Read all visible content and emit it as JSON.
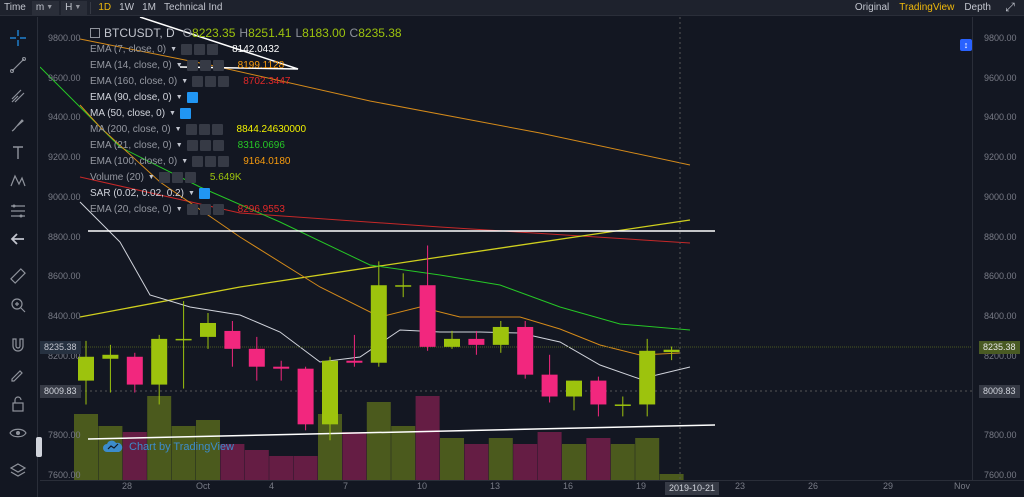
{
  "toolbar": {
    "time_label": "Time",
    "interval_dd": "m",
    "hour_dd": "H",
    "intervals": [
      "1D",
      "1W",
      "1M"
    ],
    "active_interval": "1D",
    "technical_label": "Technical Ind",
    "views": [
      "Original",
      "TradingView",
      "Depth"
    ],
    "active_view": "TradingView"
  },
  "legend": {
    "symbol": "BTCUSDT, D",
    "ohlc": [
      {
        "k": "O",
        "v": "8223.35"
      },
      {
        "k": "H",
        "v": "8251.41"
      },
      {
        "k": "L",
        "v": "8183.00"
      },
      {
        "k": "C",
        "v": "8235.38"
      }
    ],
    "indicators": [
      {
        "name": "EMA (7, close, 0)",
        "value": "8142.0432",
        "color": "#ffffff",
        "eye": false
      },
      {
        "name": "EMA (14, close, 0)",
        "value": "8199.1128",
        "color": "#f89b0e",
        "eye": false
      },
      {
        "name": "EMA (160, close, 0)",
        "value": "8702.3447",
        "color": "#e02828",
        "eye": false
      },
      {
        "name": "EMA (90, close, 0)",
        "value": "",
        "color": "#ffffff",
        "eye": true
      },
      {
        "name": "MA (50, close, 0)",
        "value": "",
        "color": "#ffffff",
        "eye": true
      },
      {
        "name": "MA (200, close, 0)",
        "value": "8844.24630000",
        "color": "#f3f300",
        "eye": false
      },
      {
        "name": "EMA (21, close, 0)",
        "value": "8316.0696",
        "color": "#26c726",
        "eye": false
      },
      {
        "name": "EMA (100, close, 0)",
        "value": "9164.0180",
        "color": "#f89b0e",
        "eye": false
      },
      {
        "name": "Volume (20)",
        "value": "5.649K",
        "color": "#9dc30d",
        "eye": false
      },
      {
        "name": "SAR (0.02, 0.02, 0.2)",
        "value": "",
        "color": "#ffffff",
        "eye": true
      },
      {
        "name": "EMA (20, close, 0)",
        "value": "8296.9553",
        "color": "#e02828",
        "eye": false
      }
    ]
  },
  "y_ticks": [
    "9800.00",
    "9600.00",
    "9400.00",
    "9200.00",
    "9000.00",
    "8800.00",
    "8600.00",
    "8400.00",
    "8200.00",
    "7800.00",
    "7600.00"
  ],
  "x_ticks": [
    "28",
    "Oct",
    "4",
    "7",
    "10",
    "13",
    "16",
    "19",
    "23",
    "26",
    "29",
    "Nov"
  ],
  "cursor_date": "2019-10-21",
  "last_price": "8235.38",
  "cursor_price": "8009.83",
  "watermark": "Chart by TradingView",
  "colors": {
    "up": "#9dc30d",
    "down": "#f2277e",
    "background": "#131722",
    "accent": "#f0b90b"
  },
  "chart_data": {
    "type": "candlestick",
    "ylim": [
      7600,
      9950
    ],
    "candles": [
      {
        "date": "2019-09-26",
        "o": 8080,
        "h": 8280,
        "l": 7960,
        "c": 8200
      },
      {
        "date": "2019-09-27",
        "o": 8190,
        "h": 8260,
        "l": 8020,
        "c": 8210
      },
      {
        "date": "2019-09-28",
        "o": 8200,
        "h": 8220,
        "l": 8020,
        "c": 8060
      },
      {
        "date": "2019-09-29",
        "o": 8060,
        "h": 8310,
        "l": 7960,
        "c": 8290
      },
      {
        "date": "2019-09-30",
        "o": 8290,
        "h": 8480,
        "l": 8040,
        "c": 8290
      },
      {
        "date": "2019-10-01",
        "o": 8300,
        "h": 8420,
        "l": 8240,
        "c": 8370
      },
      {
        "date": "2019-10-02",
        "o": 8330,
        "h": 8380,
        "l": 8150,
        "c": 8240
      },
      {
        "date": "2019-10-03",
        "o": 8240,
        "h": 8300,
        "l": 8080,
        "c": 8150
      },
      {
        "date": "2019-10-04",
        "o": 8150,
        "h": 8180,
        "l": 8080,
        "c": 8140
      },
      {
        "date": "2019-10-05",
        "o": 8140,
        "h": 8150,
        "l": 7830,
        "c": 7860
      },
      {
        "date": "2019-10-06",
        "o": 7860,
        "h": 8200,
        "l": 7780,
        "c": 8180
      },
      {
        "date": "2019-10-07",
        "o": 8180,
        "h": 8310,
        "l": 8150,
        "c": 8170
      },
      {
        "date": "2019-10-08",
        "o": 8170,
        "h": 8680,
        "l": 8150,
        "c": 8560
      },
      {
        "date": "2019-10-09",
        "o": 8560,
        "h": 8620,
        "l": 8500,
        "c": 8560
      },
      {
        "date": "2019-10-10",
        "o": 8560,
        "h": 8760,
        "l": 8230,
        "c": 8250
      },
      {
        "date": "2019-10-11",
        "o": 8250,
        "h": 8330,
        "l": 8240,
        "c": 8290
      },
      {
        "date": "2019-10-12",
        "o": 8290,
        "h": 8330,
        "l": 8210,
        "c": 8260
      },
      {
        "date": "2019-10-13",
        "o": 8260,
        "h": 8380,
        "l": 8220,
        "c": 8350
      },
      {
        "date": "2019-10-14",
        "o": 8350,
        "h": 8380,
        "l": 8090,
        "c": 8110
      },
      {
        "date": "2019-10-15",
        "o": 8110,
        "h": 8210,
        "l": 7970,
        "c": 8000
      },
      {
        "date": "2019-10-16",
        "o": 8000,
        "h": 8080,
        "l": 7930,
        "c": 8080
      },
      {
        "date": "2019-10-17",
        "o": 8080,
        "h": 8100,
        "l": 7900,
        "c": 7960
      },
      {
        "date": "2019-10-18",
        "o": 7960,
        "h": 8000,
        "l": 7900,
        "c": 7960
      },
      {
        "date": "2019-10-19",
        "o": 7960,
        "h": 8290,
        "l": 7900,
        "c": 8230
      },
      {
        "date": "2019-10-20",
        "o": 8223.35,
        "h": 8251.41,
        "l": 8183.0,
        "c": 8235.38
      }
    ]
  }
}
